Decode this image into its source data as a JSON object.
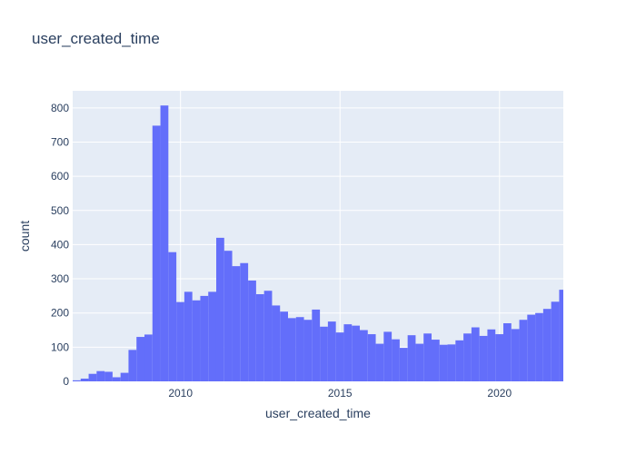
{
  "chart_data": {
    "type": "bar",
    "title": "user_created_time",
    "xlabel": "user_created_time",
    "ylabel": "count",
    "xlim": [
      2006.62,
      2022.0
    ],
    "ylim": [
      0,
      850
    ],
    "bin_start": 2006.62,
    "bin_width": 0.25,
    "x_ticks": [
      2010,
      2015,
      2020
    ],
    "y_ticks": [
      0,
      100,
      200,
      300,
      400,
      500,
      600,
      700,
      800
    ],
    "grid": true,
    "colors": {
      "bar": "#636efa",
      "plot_bg": "#e5ecf6",
      "grid": "#ffffff",
      "text": "#2a3f5f"
    },
    "values": [
      3,
      8,
      22,
      30,
      28,
      12,
      25,
      92,
      130,
      137,
      748,
      807,
      378,
      232,
      262,
      237,
      250,
      262,
      420,
      382,
      337,
      346,
      295,
      255,
      265,
      222,
      204,
      185,
      188,
      180,
      210,
      160,
      175,
      143,
      167,
      163,
      150,
      138,
      110,
      145,
      123,
      98,
      135,
      110,
      140,
      122,
      107,
      108,
      120,
      140,
      158,
      133,
      152,
      138,
      170,
      153,
      180,
      195,
      200,
      212,
      233,
      268
    ]
  }
}
